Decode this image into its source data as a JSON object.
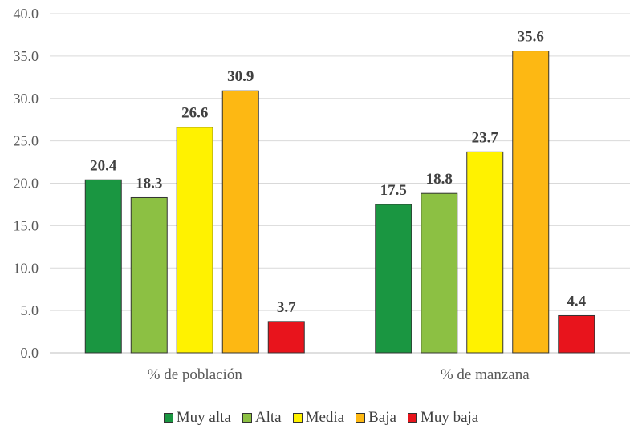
{
  "chart_data": {
    "type": "bar",
    "categories": [
      "% de población",
      "% de manzana"
    ],
    "series": [
      {
        "name": "Muy alta",
        "color": "#1a9641",
        "values": [
          20.4,
          17.5
        ]
      },
      {
        "name": "Alta",
        "color": "#8cc043",
        "values": [
          18.3,
          18.8
        ]
      },
      {
        "name": "Media",
        "color": "#fff200",
        "values": [
          26.6,
          23.7
        ]
      },
      {
        "name": "Baja",
        "color": "#fdb813",
        "values": [
          30.9,
          35.6
        ]
      },
      {
        "name": "Muy baja",
        "color": "#e8141c",
        "values": [
          3.7,
          4.4
        ]
      }
    ],
    "ylim": [
      0,
      40
    ],
    "yticks": [
      "0.0",
      "5.0",
      "10.0",
      "15.0",
      "20.0",
      "25.0",
      "30.0",
      "35.0",
      "40.0"
    ],
    "data_labels": [
      [
        "20.4",
        "17.5"
      ],
      [
        "18.3",
        "18.8"
      ],
      [
        "26.6",
        "23.7"
      ],
      [
        "30.9",
        "35.6"
      ],
      [
        "3.7",
        "4.4"
      ]
    ],
    "grid": true,
    "legend_position": "bottom"
  }
}
